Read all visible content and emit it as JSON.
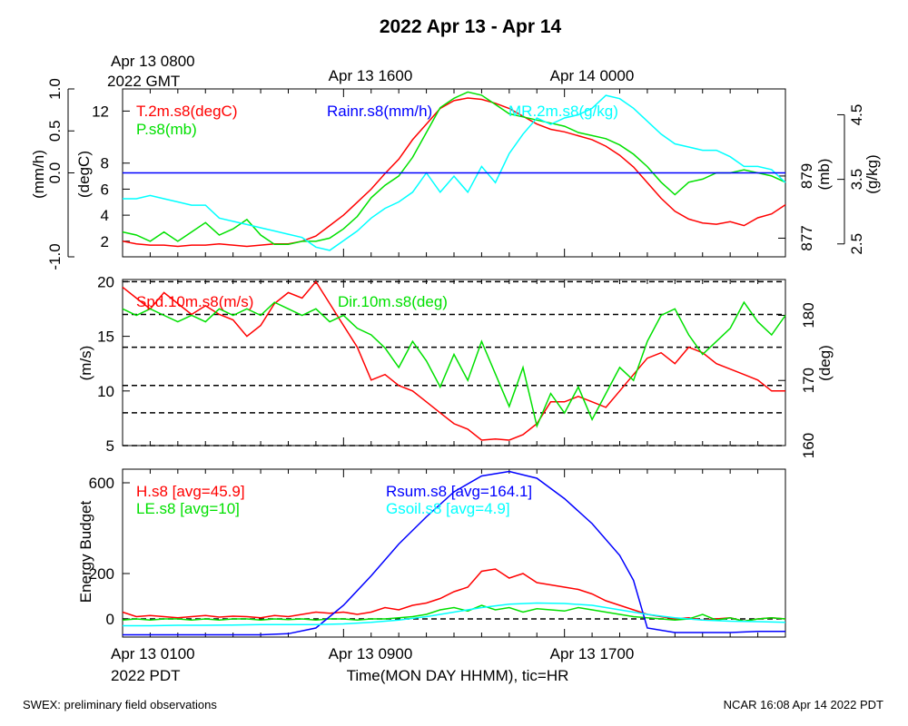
{
  "figure": {
    "title": "2022 Apr 13 - Apr 14",
    "top_axis_labels": [
      "Apr 13 0800",
      "2022 GMT",
      "Apr 13 1600",
      "Apr 14 0000"
    ],
    "bottom_axis_labels": [
      "Apr 13 0100",
      "2022 PDT",
      "Apr 13 0900",
      "Apr 13 1700"
    ],
    "xlabel": "Time(MON DAY HHMM), tic=HR",
    "footer_left": "SWEX: preliminary field observations",
    "footer_right": "NCAR 16:08 Apr 14 2022 PDT",
    "colors": {
      "red": "#ff0000",
      "green": "#00e000",
      "blue": "#0000ff",
      "cyan": "#00ffff",
      "black": "#000000"
    }
  },
  "chart_data": [
    {
      "type": "line",
      "panel": "top",
      "x_unit": "hours since Apr 13 0000 PDT",
      "xlim": [
        1,
        25
      ],
      "axes": {
        "rain": {
          "label": "(mm/h)",
          "ylim": [
            -1.0,
            1.0
          ],
          "ticks": [
            "-1.0",
            "0.0",
            "0.5",
            "1.0"
          ]
        },
        "temp": {
          "label": "(degC)",
          "ylim": [
            0.8,
            13.7
          ],
          "ticks": [
            "2",
            "4",
            "6",
            "8",
            "12"
          ]
        },
        "pres": {
          "label": "(mb)",
          "ylim": [
            876.4,
            881.8
          ],
          "ticks": [
            "877",
            "879"
          ]
        },
        "mr": {
          "label": "(g/kg)",
          "ylim": [
            2.3,
            4.9
          ],
          "ticks": [
            "2.5",
            "3.5",
            "4.5"
          ]
        }
      },
      "series": [
        {
          "name": "T.2m.s8(degC)",
          "color": "#ff0000",
          "axis": "temp",
          "x": [
            1,
            1.5,
            2,
            2.5,
            3,
            3.5,
            4,
            4.5,
            5,
            5.5,
            6,
            6.5,
            7,
            7.5,
            8,
            8.5,
            9,
            9.5,
            10,
            10.5,
            11,
            11.5,
            12,
            12.5,
            13,
            13.5,
            14,
            14.5,
            15,
            15.5,
            16,
            16.5,
            17,
            17.5,
            18,
            18.5,
            19,
            19.5,
            20,
            20.5,
            21,
            21.5,
            22,
            22.5,
            23,
            23.5,
            24,
            24.5,
            25
          ],
          "y": [
            2.0,
            1.8,
            1.7,
            1.7,
            1.6,
            1.7,
            1.7,
            1.8,
            1.7,
            1.6,
            1.7,
            1.8,
            1.8,
            2.0,
            2.4,
            3.2,
            4.0,
            5.0,
            6.0,
            7.2,
            8.3,
            9.8,
            11.0,
            12.2,
            12.8,
            13.0,
            12.9,
            12.6,
            12.2,
            11.6,
            11.0,
            10.6,
            10.4,
            10.1,
            9.8,
            9.3,
            8.6,
            7.7,
            6.5,
            5.3,
            4.3,
            3.7,
            3.4,
            3.3,
            3.5,
            3.2,
            3.8,
            4.1,
            4.8
          ]
        },
        {
          "name": "P.s8(mb)",
          "color": "#00e000",
          "axis": "pres",
          "x": [
            1,
            1.5,
            2,
            2.5,
            3,
            3.5,
            4,
            4.5,
            5,
            5.5,
            6,
            6.5,
            7,
            7.5,
            8,
            8.5,
            9,
            9.5,
            10,
            10.5,
            11,
            11.5,
            12,
            12.5,
            13,
            13.5,
            14,
            14.5,
            15,
            15.5,
            16,
            16.5,
            17,
            17.5,
            18,
            18.5,
            19,
            19.5,
            20,
            20.5,
            21,
            21.5,
            22,
            22.5,
            23,
            23.5,
            24,
            24.5,
            25
          ],
          "y": [
            877.2,
            877.1,
            876.9,
            877.2,
            876.9,
            877.2,
            877.5,
            877.1,
            877.3,
            877.6,
            877.1,
            876.8,
            876.8,
            876.9,
            876.9,
            877.0,
            877.3,
            877.7,
            878.3,
            878.7,
            879.0,
            879.6,
            880.4,
            881.2,
            881.5,
            881.7,
            881.6,
            881.3,
            881.0,
            880.9,
            880.8,
            880.7,
            880.6,
            880.4,
            880.3,
            880.2,
            880.0,
            879.7,
            879.3,
            878.8,
            878.4,
            878.8,
            878.9,
            879.1,
            879.1,
            879.2,
            879.1,
            879.0,
            878.8
          ]
        },
        {
          "name": "MR.2m.s8(g/kg)",
          "color": "#00ffff",
          "axis": "mr",
          "x": [
            1,
            1.5,
            2,
            2.5,
            3,
            3.5,
            4,
            4.5,
            5,
            5.5,
            6,
            6.5,
            7,
            7.5,
            8,
            8.5,
            9,
            9.5,
            10,
            10.5,
            11,
            11.5,
            12,
            12.5,
            13,
            13.5,
            14,
            14.5,
            15,
            15.5,
            16,
            16.5,
            17,
            17.5,
            18,
            18.5,
            19,
            19.5,
            20,
            20.5,
            21,
            21.5,
            22,
            22.5,
            23,
            23.5,
            24,
            24.5,
            25
          ],
          "y": [
            3.2,
            3.2,
            3.25,
            3.2,
            3.15,
            3.1,
            3.1,
            2.9,
            2.85,
            2.8,
            2.75,
            2.7,
            2.65,
            2.6,
            2.45,
            2.4,
            2.55,
            2.7,
            2.9,
            3.05,
            3.15,
            3.3,
            3.6,
            3.3,
            3.55,
            3.3,
            3.7,
            3.45,
            3.9,
            4.2,
            4.45,
            4.35,
            4.45,
            4.5,
            4.6,
            4.8,
            4.75,
            4.6,
            4.4,
            4.2,
            4.05,
            4.0,
            3.95,
            3.95,
            3.85,
            3.7,
            3.7,
            3.65,
            3.45
          ]
        },
        {
          "name": "Rainr.s8(mm/h)",
          "color": "#0000ff",
          "axis": "rain",
          "x": [
            1,
            25
          ],
          "y": [
            0.0,
            0.0
          ]
        }
      ]
    },
    {
      "type": "line",
      "panel": "middle",
      "x_unit": "hours since Apr 13 0000 PDT",
      "xlim": [
        1,
        25
      ],
      "axes": {
        "speed": {
          "label": "(m/s)",
          "ylim": [
            5,
            20.2
          ],
          "ticks": [
            "5",
            "10",
            "15",
            "20"
          ]
        },
        "dir": {
          "label": "(deg)",
          "ylim": [
            160,
            185.5
          ],
          "ticks": [
            "160",
            "170",
            "180"
          ]
        }
      },
      "series": [
        {
          "name": "Spd.10m.s8(m/s)",
          "color": "#ff0000",
          "axis": "speed",
          "x": [
            1,
            1.5,
            2,
            2.5,
            3,
            3.5,
            4,
            4.5,
            5,
            5.5,
            6,
            6.5,
            7,
            7.5,
            8,
            8.5,
            9,
            9.5,
            10,
            10.5,
            11,
            11.5,
            12,
            12.5,
            13,
            13.5,
            14,
            14.5,
            15,
            15.5,
            16,
            16.5,
            17,
            17.5,
            18,
            18.5,
            19,
            19.5,
            20,
            20.5,
            21,
            21.5,
            22,
            22.5,
            23,
            23.5,
            24,
            24.5,
            25
          ],
          "y": [
            19.5,
            18.5,
            17.5,
            19.0,
            18.0,
            17.0,
            17.8,
            17.0,
            16.5,
            15.0,
            16.0,
            18.0,
            19.0,
            18.5,
            20.0,
            18.0,
            16.0,
            14.0,
            11.0,
            11.5,
            10.5,
            10.0,
            9.0,
            8.0,
            7.0,
            6.5,
            5.5,
            5.6,
            5.5,
            6.0,
            7.0,
            9.0,
            9.0,
            9.5,
            9.0,
            8.5,
            10.0,
            11.5,
            13.0,
            13.5,
            12.5,
            14.0,
            13.5,
            12.5,
            12.0,
            11.5,
            11.0,
            10.0,
            10.0
          ]
        },
        {
          "name": "Dir.10m.s8(deg)",
          "color": "#00e000",
          "axis": "dir",
          "x": [
            1,
            1.5,
            2,
            2.5,
            3,
            3.5,
            4,
            4.5,
            5,
            5.5,
            6,
            6.5,
            7,
            7.5,
            8,
            8.5,
            9,
            9.5,
            10,
            10.5,
            11,
            11.5,
            12,
            12.5,
            13,
            13.5,
            14,
            14.5,
            15,
            15.5,
            16,
            16.5,
            17,
            17.5,
            18,
            18.5,
            19,
            19.5,
            20,
            20.5,
            21,
            21.5,
            22,
            22.5,
            23,
            23.5,
            24,
            24.5,
            25
          ],
          "y": [
            181,
            180,
            181,
            180,
            179,
            180,
            179,
            181,
            180,
            181,
            180,
            182,
            181,
            180,
            181,
            179,
            180,
            178,
            177,
            175,
            172,
            176,
            173,
            169,
            174,
            170,
            176,
            171,
            166,
            172,
            163,
            168,
            165,
            169,
            164,
            168,
            172,
            170,
            176,
            180,
            181,
            177,
            174,
            176,
            178,
            182,
            179,
            177,
            180
          ]
        }
      ],
      "reference_lines": {
        "axis": "speed",
        "values": [
          5,
          8,
          10.5,
          14,
          17,
          20
        ]
      }
    },
    {
      "type": "line",
      "panel": "bottom",
      "x_unit": "hours since Apr 13 0000 PDT",
      "xlim": [
        1,
        25
      ],
      "ylabel": "Energy Budget",
      "ylim": [
        -80,
        660
      ],
      "yticks": [
        "0",
        "200",
        "600"
      ],
      "series": [
        {
          "name": "H.s8 [avg=45.9]",
          "color": "#ff0000",
          "x": [
            1,
            1.5,
            2,
            2.5,
            3,
            3.5,
            4,
            4.5,
            5,
            5.5,
            6,
            6.5,
            7,
            7.5,
            8,
            8.5,
            9,
            9.5,
            10,
            10.5,
            11,
            11.5,
            12,
            12.5,
            13,
            13.5,
            14,
            14.5,
            15,
            15.5,
            16,
            16.5,
            17,
            17.5,
            18,
            18.5,
            19,
            19.5,
            20,
            20.5,
            21,
            21.5,
            22,
            22.5,
            23,
            23.5,
            24,
            24.5,
            25
          ],
          "y": [
            30,
            10,
            15,
            10,
            5,
            10,
            15,
            8,
            12,
            10,
            5,
            15,
            10,
            20,
            30,
            25,
            30,
            20,
            30,
            50,
            40,
            60,
            70,
            90,
            120,
            140,
            210,
            220,
            180,
            200,
            160,
            150,
            140,
            130,
            110,
            80,
            60,
            40,
            20,
            10,
            0,
            5,
            -5,
            0,
            5,
            -10,
            0,
            5,
            0
          ]
        },
        {
          "name": "LE.s8 [avg=10]",
          "color": "#00e000",
          "x": [
            1,
            1.5,
            2,
            2.5,
            3,
            3.5,
            4,
            4.5,
            5,
            5.5,
            6,
            6.5,
            7,
            7.5,
            8,
            8.5,
            9,
            9.5,
            10,
            10.5,
            11,
            11.5,
            12,
            12.5,
            13,
            13.5,
            14,
            14.5,
            15,
            15.5,
            16,
            16.5,
            17,
            17.5,
            18,
            18.5,
            19,
            19.5,
            20,
            20.5,
            21,
            21.5,
            22,
            22.5,
            23,
            23.5,
            24,
            24.5,
            25
          ],
          "y": [
            -5,
            0,
            -5,
            0,
            0,
            -5,
            0,
            -5,
            0,
            0,
            -5,
            0,
            -3,
            0,
            -5,
            0,
            0,
            -5,
            0,
            0,
            5,
            10,
            20,
            40,
            50,
            35,
            60,
            40,
            50,
            30,
            45,
            40,
            35,
            50,
            40,
            30,
            20,
            10,
            5,
            0,
            -5,
            0,
            20,
            -5,
            5,
            -10,
            0,
            5,
            0
          ]
        },
        {
          "name": "Rsum.s8 [avg=164.1]",
          "color": "#0000ff",
          "x": [
            1,
            2,
            3,
            4,
            5,
            6,
            7,
            8,
            9,
            10,
            11,
            12,
            13,
            14,
            15,
            16,
            17,
            18,
            19,
            19.5,
            20,
            21,
            22,
            23,
            24,
            25
          ],
          "y": [
            -70,
            -70,
            -70,
            -70,
            -70,
            -70,
            -65,
            -40,
            60,
            190,
            330,
            450,
            560,
            630,
            650,
            620,
            530,
            420,
            280,
            170,
            -40,
            -60,
            -60,
            -60,
            -55,
            -55
          ]
        },
        {
          "name": "Gsoil.s8 [avg=4.9]",
          "color": "#00ffff",
          "x": [
            1,
            2,
            3,
            4,
            5,
            6,
            7,
            8,
            9,
            10,
            11,
            12,
            13,
            14,
            15,
            16,
            17,
            18,
            19,
            20,
            21,
            22,
            23,
            24,
            25
          ],
          "y": [
            -30,
            -30,
            -28,
            -28,
            -27,
            -25,
            -25,
            -25,
            -22,
            -15,
            -5,
            10,
            30,
            50,
            65,
            70,
            68,
            60,
            40,
            20,
            5,
            -5,
            -10,
            -12,
            -15
          ]
        }
      ],
      "reference_lines": {
        "values": [
          0
        ]
      }
    }
  ]
}
